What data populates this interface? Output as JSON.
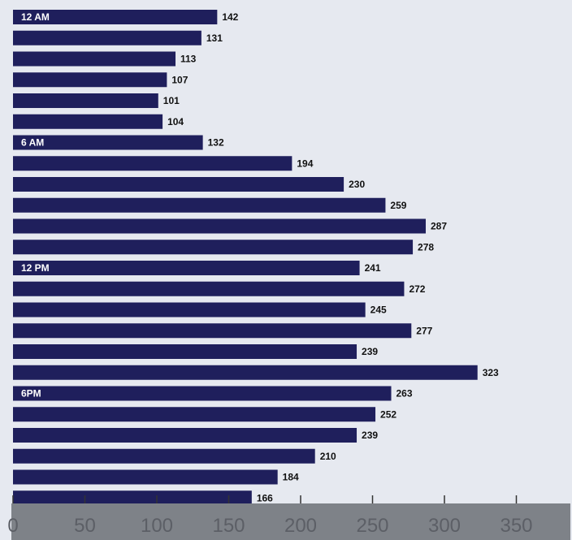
{
  "chart_data": {
    "type": "bar",
    "orientation": "horizontal",
    "title": "",
    "xlabel": "",
    "ylabel": "",
    "xlim": [
      0,
      380
    ],
    "grid": false,
    "categories": [
      "12 AM",
      "",
      "",
      "",
      "",
      "",
      "6 AM",
      "",
      "",
      "",
      "",
      "",
      "12 PM",
      "",
      "",
      "",
      "",
      "",
      "6PM",
      "",
      "",
      "",
      "",
      ""
    ],
    "values": [
      142,
      131,
      113,
      107,
      101,
      104,
      132,
      194,
      230,
      259,
      287,
      278,
      241,
      272,
      245,
      277,
      239,
      323,
      263,
      252,
      239,
      210,
      184,
      166
    ],
    "x_ticks": [
      0,
      50,
      100,
      150,
      200,
      250,
      300,
      350
    ],
    "colors": {
      "bar": "#1f1f5c",
      "background": "#e6e9f0",
      "axis_band": "#7e8288",
      "tick_text": "#5c5f66",
      "bar_label_inside": "#ffffff",
      "value_text": "#111111"
    }
  }
}
